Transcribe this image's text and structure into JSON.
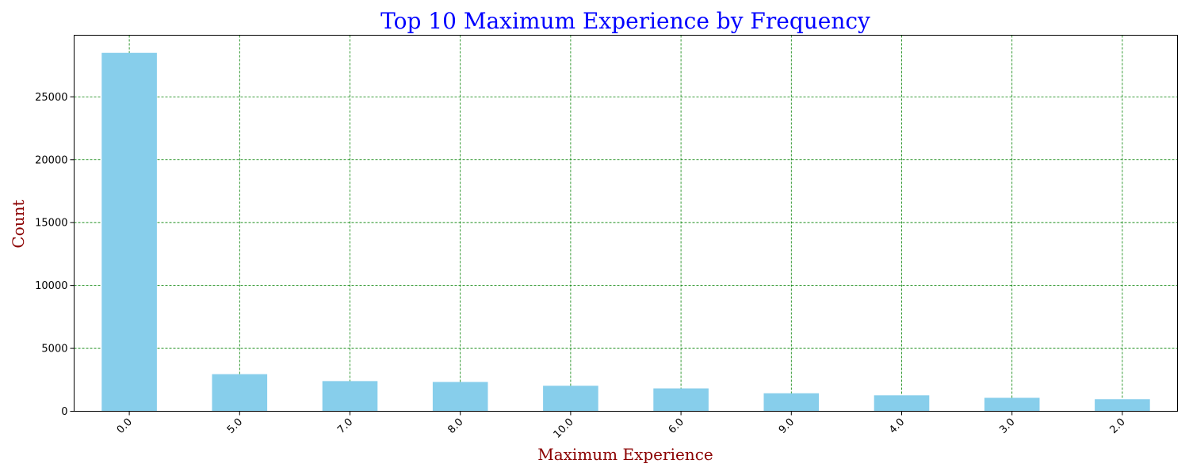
{
  "chart_data": {
    "type": "bar",
    "title": "Top 10 Maximum Experience by Frequency",
    "xlabel": "Maximum Experience",
    "ylabel": "Count",
    "categories": [
      "0.0",
      "5.0",
      "7.0",
      "8.0",
      "10.0",
      "6.0",
      "9.0",
      "4.0",
      "3.0",
      "2.0"
    ],
    "values": [
      28500,
      2950,
      2400,
      2330,
      2030,
      1820,
      1430,
      1270,
      1070,
      960
    ],
    "ylim": [
      0,
      29900
    ],
    "yticks": [
      0,
      5000,
      10000,
      15000,
      20000,
      25000
    ],
    "grid": true,
    "legend": "none",
    "colors": {
      "bar": "#87ceeb",
      "grid": "#008000",
      "title": "#0000ff",
      "axis_label": "#8b0000"
    }
  }
}
